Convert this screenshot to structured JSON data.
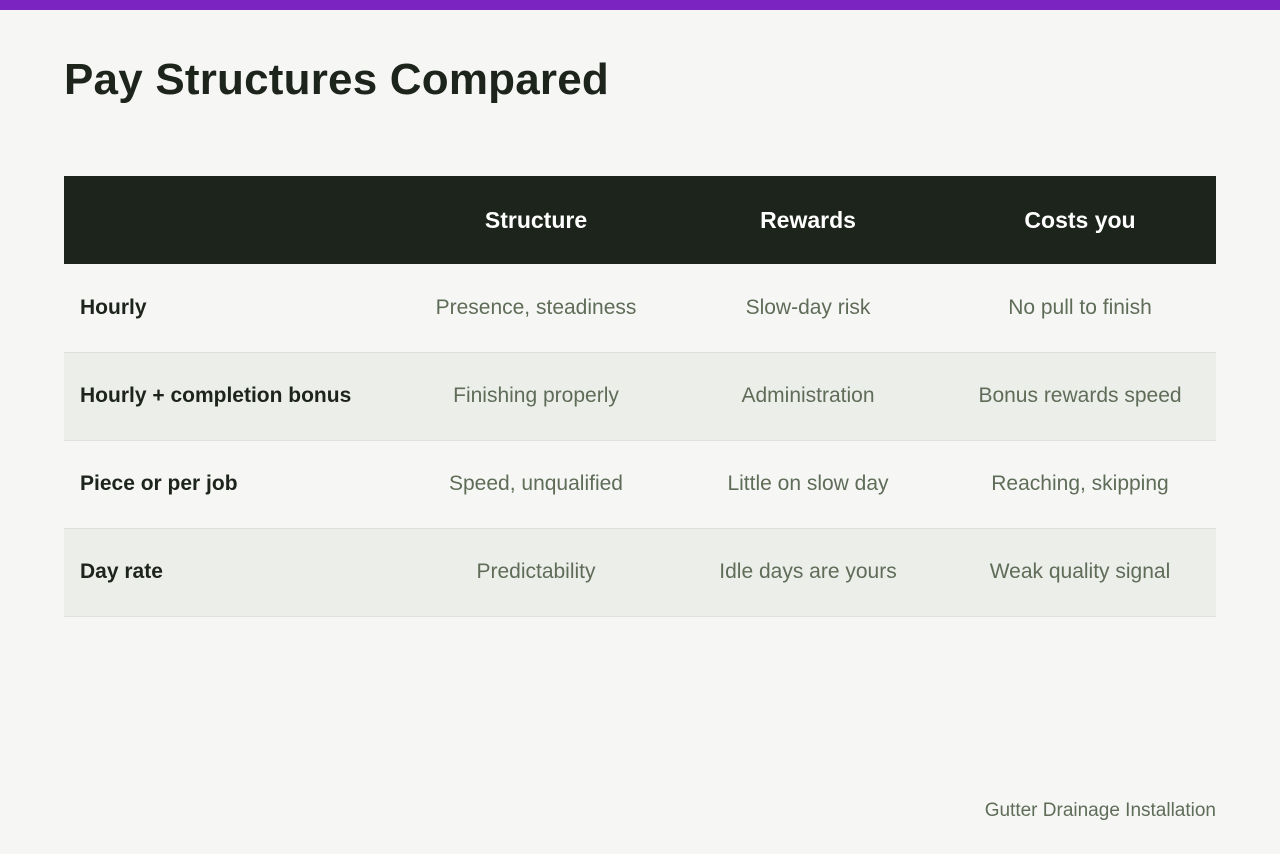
{
  "colors": {
    "accent": "#7b24c2",
    "header_bg": "#1d241b",
    "page_bg": "#f6f7f5",
    "alt_row_bg": "#eceeea",
    "muted_text": "#5f6c58"
  },
  "title": "Pay Structures Compared",
  "table": {
    "headers": [
      "",
      "Structure",
      "Rewards",
      "Costs you"
    ],
    "rows": [
      {
        "label": "Hourly",
        "cells": [
          "Presence, steadiness",
          "Slow-day risk",
          "No pull to finish"
        ]
      },
      {
        "label": "Hourly + completion bonus",
        "cells": [
          "Finishing properly",
          "Administration",
          "Bonus rewards speed"
        ]
      },
      {
        "label": "Piece or per job",
        "cells": [
          "Speed, unqualified",
          "Little on slow day",
          "Reaching, skipping"
        ]
      },
      {
        "label": "Day rate",
        "cells": [
          "Predictability",
          "Idle days are yours",
          "Weak quality signal"
        ]
      }
    ]
  },
  "footer": "Gutter Drainage Installation"
}
